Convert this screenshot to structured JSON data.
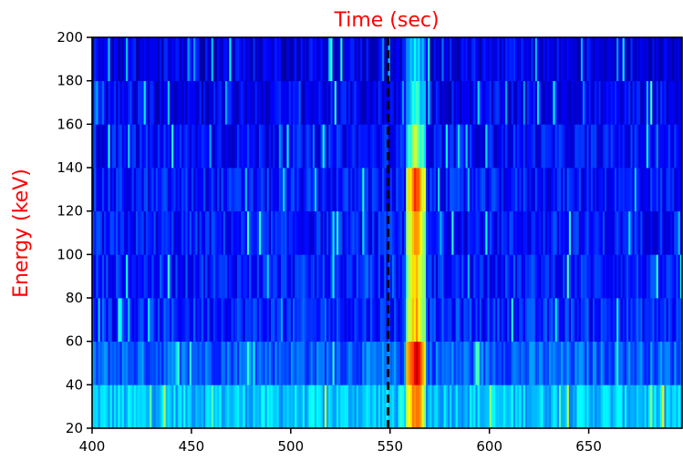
{
  "chart_data": {
    "type": "heatmap",
    "title": "Time (sec)",
    "xlabel": "",
    "ylabel": "Energy (keV)",
    "title_color": "#ff0000",
    "ylabel_color": "#ff0000",
    "xlim": [
      400,
      697
    ],
    "ylim": [
      20,
      200
    ],
    "xticks": [
      400,
      450,
      500,
      550,
      600,
      650
    ],
    "yticks": [
      20,
      40,
      60,
      80,
      100,
      120,
      140,
      160,
      180,
      200
    ],
    "x_tick_labels": [
      "400",
      "450",
      "500",
      "550",
      "600",
      "650"
    ],
    "y_tick_labels": [
      "20",
      "40",
      "60",
      "80",
      "100",
      "120",
      "140",
      "160",
      "180",
      "200"
    ],
    "colormap": "jet",
    "color_range": [
      0,
      1
    ],
    "energy_bins": [
      {
        "low": 20,
        "high": 40,
        "background": 0.32
      },
      {
        "low": 40,
        "high": 60,
        "background": 0.22
      },
      {
        "low": 60,
        "high": 80,
        "background": 0.16
      },
      {
        "low": 80,
        "high": 100,
        "background": 0.15
      },
      {
        "low": 100,
        "high": 120,
        "background": 0.14
      },
      {
        "low": 120,
        "high": 140,
        "background": 0.14
      },
      {
        "low": 140,
        "high": 160,
        "background": 0.13
      },
      {
        "low": 160,
        "high": 180,
        "background": 0.11
      },
      {
        "low": 180,
        "high": 200,
        "background": 0.1
      }
    ],
    "burst": {
      "t_start": 558,
      "t_end": 568,
      "peak_intensity_by_bin": [
        0.8,
        0.95,
        0.72,
        0.68,
        0.74,
        0.82,
        0.55,
        0.42,
        0.36
      ]
    },
    "reference_line": {
      "x": 549,
      "style": "dashed",
      "color": "#000000"
    },
    "time_bin_width": 1
  }
}
